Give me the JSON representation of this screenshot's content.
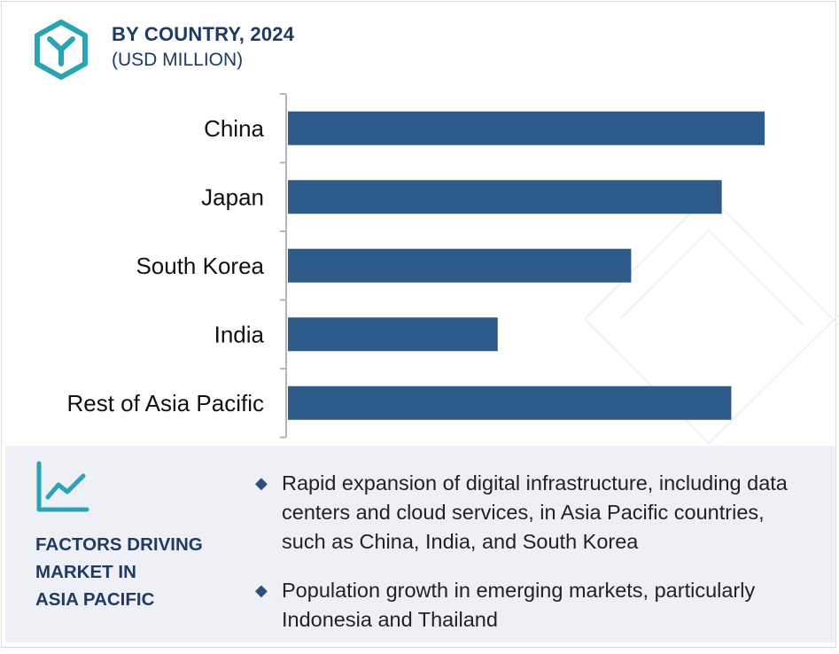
{
  "header": {
    "title": "BY COUNTRY, 2024",
    "subtitle": "(USD MILLION)"
  },
  "chart_data": {
    "type": "bar",
    "orientation": "horizontal",
    "categories": [
      "China",
      "Japan",
      "South Korea",
      "India",
      "Rest of Asia Pacific"
    ],
    "values": [
      100,
      91,
      72,
      44,
      93
    ],
    "xlim": [
      0,
      105
    ],
    "bar_color": "#2f5b8a",
    "grid": false,
    "legend": "none"
  },
  "factors": {
    "title_lines": [
      "FACTORS DRIVING",
      "MARKET IN",
      "ASIA PACIFIC"
    ],
    "items": [
      "Rapid expansion of digital infrastructure, including data centers and cloud services, in Asia Pacific countries, such as China, India, and South Korea",
      "Population growth in emerging markets, particularly Indonesia and Thailand"
    ]
  },
  "colors": {
    "accent": "#2aa3b5",
    "heading": "#1f3a63",
    "panel_bg": "#eef0f5"
  },
  "icons": {
    "logo": "hexagon-y-logo-icon",
    "trend": "line-chart-icon",
    "bullet": "diamond-bullet-icon"
  }
}
